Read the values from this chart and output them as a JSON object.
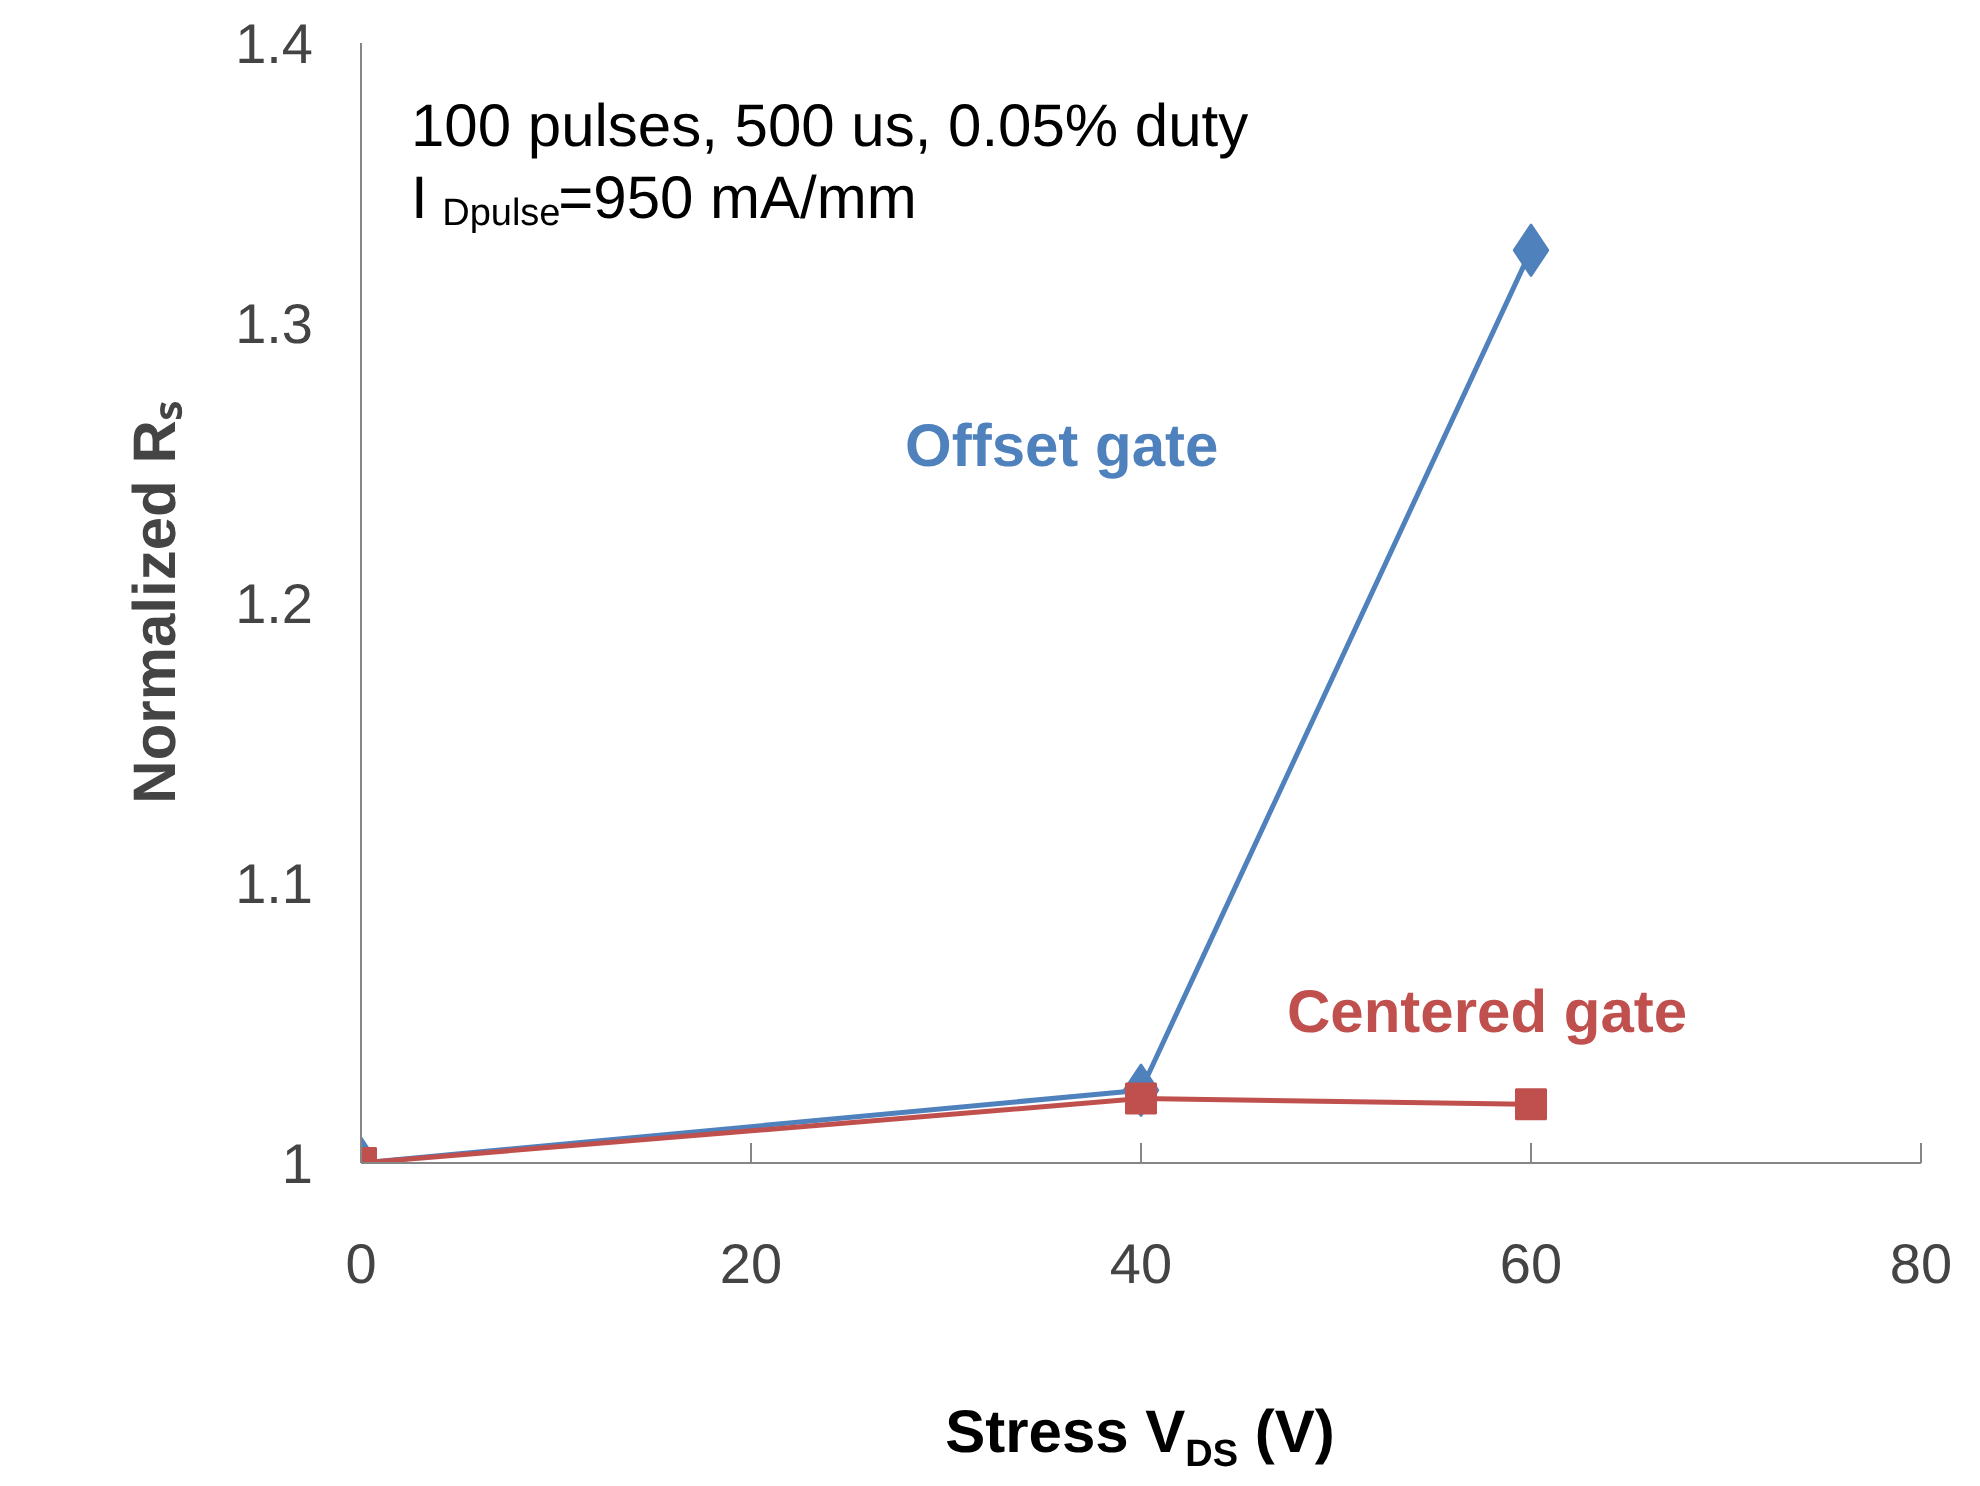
{
  "chart_data": {
    "type": "line",
    "annotations": [
      "100 pulses, 500 us, 0.05% duty",
      "I$_{Dpulse}$=950 mA/mm"
    ],
    "xlabel": "Stress V$_{DS}$ (V)",
    "ylabel": "Normalized Rₛ",
    "x": [
      0,
      40,
      60
    ],
    "series": [
      {
        "name": "Offset gate",
        "color": "#4f81bd",
        "marker": "diamond",
        "values": [
          1.0,
          1.026,
          1.326
        ]
      },
      {
        "name": "Centered gate",
        "color": "#c0504d",
        "marker": "square",
        "values": [
          1.0,
          1.023,
          1.021
        ]
      }
    ],
    "xlim": [
      0,
      80
    ],
    "ylim": [
      1,
      1.4
    ],
    "xticks": [
      0,
      20,
      40,
      60,
      80
    ],
    "yticks": [
      1,
      1.1,
      1.2,
      1.3,
      1.4
    ],
    "grid": false,
    "legend": false
  }
}
